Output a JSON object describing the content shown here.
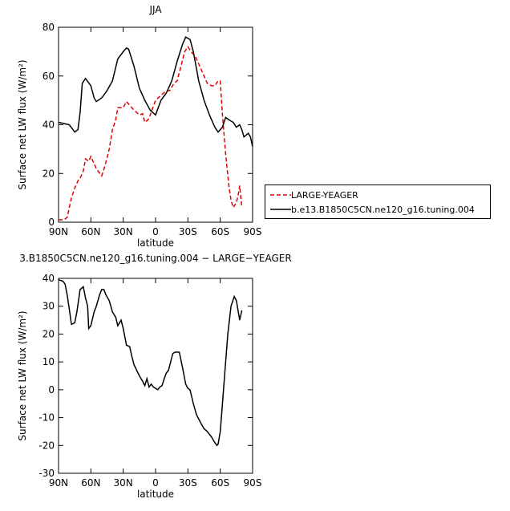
{
  "chart_data": [
    {
      "type": "line",
      "title": "JJA",
      "y_label": "Surface net LW flux (W/m²)",
      "x_label": "latitude",
      "xlim": [
        90,
        -90
      ],
      "xticks": [
        {
          "value": 90,
          "label": "90N"
        },
        {
          "value": 60,
          "label": "60N"
        },
        {
          "value": 30,
          "label": "30N"
        },
        0,
        {
          "value": -30,
          "label": "30S"
        },
        {
          "value": -60,
          "label": "60S"
        },
        {
          "value": -90,
          "label": "90S"
        }
      ],
      "ylim": [
        0,
        80
      ],
      "yticks": [
        0,
        20,
        40,
        60,
        80
      ],
      "series": [
        {
          "name": "LARGE-YEAGER",
          "color": "#e00000",
          "style": "dashed",
          "x": [
            90,
            85,
            82,
            78,
            75,
            72,
            70,
            67,
            65,
            62,
            60,
            58,
            55,
            50,
            47,
            43,
            40,
            37,
            35,
            30,
            27,
            24,
            20,
            15,
            12,
            10,
            7,
            5,
            0,
            -5,
            -10,
            -13,
            -17,
            -20,
            -23,
            -27,
            -30,
            -33,
            -37,
            -40,
            -45,
            -48,
            -52,
            -55,
            -58,
            -60,
            -62,
            -65,
            -68,
            -70,
            -72,
            -75,
            -77,
            -78,
            -80
          ],
          "values": [
            1,
            1,
            2,
            10,
            14,
            17,
            18,
            21,
            26,
            25,
            27,
            25,
            22,
            19,
            23,
            30,
            38,
            42,
            47,
            47,
            49.5,
            48,
            46,
            44,
            44.5,
            41,
            42,
            44,
            50,
            52,
            54,
            54,
            57,
            58,
            63,
            70,
            72,
            70,
            68,
            65,
            60,
            57,
            56,
            56,
            58,
            58,
            44,
            28,
            15,
            9,
            6,
            8,
            12,
            15,
            6
          ]
        },
        {
          "name": "b.e13.B1850C5CN.ne120_g16.tuning.004",
          "color": "#000000",
          "style": "solid",
          "x": [
            90,
            85,
            80,
            75,
            72,
            70,
            68,
            65,
            60,
            57,
            55,
            50,
            45,
            40,
            35,
            30,
            27,
            25,
            20,
            15,
            10,
            5,
            0,
            -5,
            -10,
            -15,
            -20,
            -25,
            -28,
            -32,
            -35,
            -40,
            -45,
            -50,
            -55,
            -58,
            -62,
            -65,
            -68,
            -72,
            -75,
            -78,
            -80,
            -82,
            -86,
            -88,
            -90
          ],
          "values": [
            41,
            40.5,
            40,
            37,
            38,
            45,
            57,
            59,
            56,
            51,
            49.5,
            51,
            54,
            58,
            67,
            70,
            71.5,
            71,
            64,
            55,
            50,
            46,
            44,
            50,
            53,
            58,
            66,
            73,
            76,
            75,
            70,
            58,
            50,
            44,
            39,
            37,
            39,
            43,
            42,
            41,
            39,
            40,
            38,
            35,
            36.5,
            35,
            31
          ]
        }
      ]
    },
    {
      "type": "line",
      "title": "3.B1850C5CN.ne120_g16.tuning.004 − LARGE−YEAGER",
      "y_label": "Surface net LW flux (W/m²)",
      "x_label": "latitude",
      "xlim": [
        90,
        -90
      ],
      "xticks": [
        {
          "value": 90,
          "label": "90N"
        },
        {
          "value": 60,
          "label": "60N"
        },
        {
          "value": 30,
          "label": "30N"
        },
        0,
        {
          "value": -30,
          "label": "30S"
        },
        {
          "value": -60,
          "label": "60S"
        },
        {
          "value": -90,
          "label": "90S"
        }
      ],
      "ylim": [
        -30,
        40
      ],
      "yticks": [
        -30,
        -20,
        -10,
        0,
        10,
        20,
        30,
        40
      ],
      "series": [
        {
          "color": "#000000",
          "style": "solid",
          "x": [
            90,
            86,
            84,
            82,
            80,
            78,
            75,
            73,
            70,
            67,
            65,
            63,
            62,
            60,
            57,
            55,
            52,
            50,
            48,
            46,
            43,
            40,
            37,
            35,
            32,
            30,
            27,
            24,
            22,
            20,
            15,
            12,
            10,
            8,
            6,
            4,
            2,
            0,
            -2,
            -4,
            -6,
            -8,
            -10,
            -12,
            -14,
            -16,
            -18,
            -22,
            -25,
            -28,
            -30,
            -32,
            -35,
            -38,
            -42,
            -45,
            -48,
            -52,
            -55,
            -57,
            -58,
            -60,
            -62,
            -65,
            -67,
            -70,
            -73,
            -75,
            -78,
            -80
          ],
          "values": [
            39.5,
            39,
            38,
            34,
            29,
            23.5,
            24,
            28,
            36,
            37,
            33,
            30,
            22,
            23,
            28,
            30,
            34,
            36,
            36,
            34,
            32,
            28,
            26,
            23,
            25,
            22,
            16,
            15.5,
            12,
            9,
            5,
            3,
            1.5,
            4,
            1,
            2,
            1,
            0.5,
            0,
            1,
            1.5,
            4,
            6,
            7,
            10,
            13,
            13.5,
            13.5,
            8,
            2,
            0.5,
            0,
            -5,
            -9,
            -12,
            -14,
            -15,
            -17,
            -19,
            -20,
            -19.5,
            -15,
            -5,
            10,
            20,
            30,
            33.5,
            32,
            25,
            28.5
          ]
        }
      ]
    }
  ]
}
